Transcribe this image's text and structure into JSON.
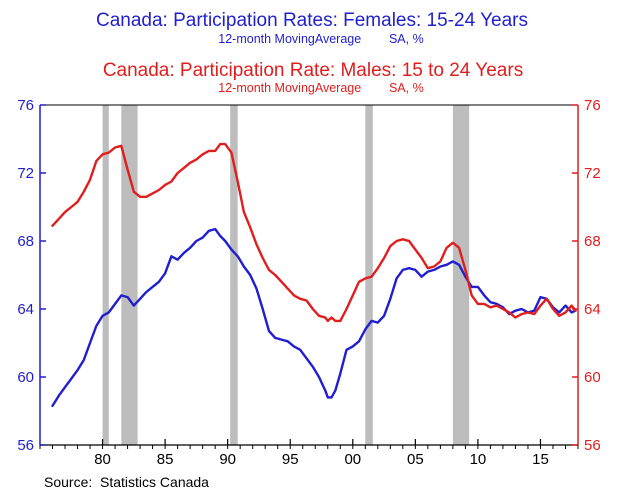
{
  "chart_data": {
    "type": "line",
    "title_female": "Canada: Participation Rates: Females: 15-24 Years",
    "subtitle_female": "12-month MovingAverage        SA, %",
    "title_male": "Canada: Participation Rate: Males: 15 to 24 Years",
    "subtitle_male": "12-month MovingAverage        SA, %",
    "source": "Source:  Statistics Canada",
    "ylim": [
      56,
      76
    ],
    "xlim": [
      1975,
      2018
    ],
    "left_ticks": [
      "76",
      "72",
      "68",
      "64",
      "60",
      "56"
    ],
    "right_ticks": [
      "76",
      "72",
      "68",
      "64",
      "60",
      "56"
    ],
    "x_ticks": [
      {
        "year": 1980,
        "label": "80"
      },
      {
        "year": 1985,
        "label": "85"
      },
      {
        "year": 1990,
        "label": "90"
      },
      {
        "year": 1995,
        "label": "95"
      },
      {
        "year": 2000,
        "label": "00"
      },
      {
        "year": 2005,
        "label": "05"
      },
      {
        "year": 2010,
        "label": "10"
      },
      {
        "year": 2015,
        "label": "15"
      }
    ],
    "recessions": [
      [
        1980.0,
        1980.5
      ],
      [
        1981.5,
        1982.8
      ],
      [
        1990.2,
        1990.8
      ],
      [
        2001.0,
        2001.6
      ],
      [
        2008.0,
        2009.3
      ]
    ],
    "colors": {
      "female": "#1f1fd0",
      "male": "#e01e1e",
      "recession": "#bdbdbd",
      "left_axis": "#1f1fd0",
      "right_axis": "#e01e1e"
    },
    "series": [
      {
        "name": "Females: 15-24 Years",
        "axis": "left",
        "x": [
          1976.0,
          1976.5,
          1977.0,
          1977.5,
          1978.0,
          1978.5,
          1979.0,
          1979.5,
          1980.0,
          1980.5,
          1981.0,
          1981.5,
          1982.0,
          1982.5,
          1983.0,
          1983.5,
          1984.0,
          1984.5,
          1985.0,
          1985.5,
          1986.0,
          1986.5,
          1987.0,
          1987.5,
          1988.0,
          1988.5,
          1989.0,
          1989.4,
          1989.8,
          1990.3,
          1990.8,
          1991.3,
          1991.8,
          1992.3,
          1992.8,
          1993.3,
          1993.8,
          1994.3,
          1994.8,
          1995.3,
          1995.8,
          1996.3,
          1996.8,
          1997.3,
          1997.8,
          1998.0,
          1998.3,
          1998.6,
          1999.0,
          1999.5,
          2000.0,
          2000.5,
          2001.0,
          2001.5,
          2002.0,
          2002.5,
          2003.0,
          2003.5,
          2004.0,
          2004.5,
          2005.0,
          2005.5,
          2006.0,
          2006.5,
          2007.0,
          2007.5,
          2008.0,
          2008.5,
          2009.0,
          2009.5,
          2010.0,
          2010.5,
          2011.0,
          2011.5,
          2012.0,
          2012.5,
          2013.0,
          2013.5,
          2014.0,
          2014.5,
          2015.0,
          2015.5,
          2016.0,
          2016.5,
          2017.0,
          2017.5,
          2017.8
        ],
        "values": [
          58.3,
          58.9,
          59.4,
          59.9,
          60.4,
          61.0,
          62.0,
          63.0,
          63.6,
          63.8,
          64.3,
          64.8,
          64.7,
          64.2,
          64.6,
          65.0,
          65.3,
          65.6,
          66.1,
          67.1,
          66.9,
          67.3,
          67.6,
          68.0,
          68.2,
          68.6,
          68.7,
          68.3,
          68.0,
          67.5,
          67.1,
          66.5,
          66.0,
          65.2,
          64.0,
          62.7,
          62.3,
          62.2,
          62.1,
          61.8,
          61.6,
          61.1,
          60.6,
          60.0,
          59.2,
          58.8,
          58.8,
          59.2,
          60.2,
          61.6,
          61.8,
          62.1,
          62.8,
          63.3,
          63.2,
          63.6,
          64.6,
          65.8,
          66.3,
          66.4,
          66.3,
          65.9,
          66.2,
          66.3,
          66.5,
          66.6,
          66.8,
          66.6,
          65.9,
          65.3,
          65.3,
          64.8,
          64.4,
          64.3,
          64.1,
          63.7,
          63.9,
          64.0,
          63.8,
          63.9,
          64.7,
          64.6,
          64.1,
          63.8,
          64.2,
          63.8,
          63.9
        ]
      },
      {
        "name": "Males: 15 to 24 Years",
        "axis": "right",
        "x": [
          1976.0,
          1976.5,
          1977.0,
          1977.5,
          1978.0,
          1978.5,
          1979.0,
          1979.5,
          1980.0,
          1980.5,
          1981.0,
          1981.5,
          1982.0,
          1982.5,
          1983.0,
          1983.5,
          1984.0,
          1984.5,
          1985.0,
          1985.5,
          1986.0,
          1986.5,
          1987.0,
          1987.5,
          1988.0,
          1988.5,
          1989.0,
          1989.4,
          1989.8,
          1990.3,
          1990.8,
          1991.3,
          1991.8,
          1992.3,
          1992.8,
          1993.3,
          1993.8,
          1994.3,
          1994.8,
          1995.3,
          1995.8,
          1996.3,
          1996.8,
          1997.3,
          1997.8,
          1998.0,
          1998.3,
          1998.6,
          1999.0,
          1999.5,
          2000.0,
          2000.5,
          2001.0,
          2001.5,
          2002.0,
          2002.5,
          2003.0,
          2003.5,
          2004.0,
          2004.5,
          2005.0,
          2005.5,
          2006.0,
          2006.5,
          2007.0,
          2007.5,
          2008.0,
          2008.5,
          2009.0,
          2009.5,
          2010.0,
          2010.5,
          2011.0,
          2011.5,
          2012.0,
          2012.5,
          2013.0,
          2013.5,
          2014.0,
          2014.5,
          2015.0,
          2015.5,
          2016.0,
          2016.5,
          2017.0,
          2017.5,
          2017.8
        ],
        "values": [
          68.9,
          69.3,
          69.7,
          70.0,
          70.3,
          70.9,
          71.6,
          72.7,
          73.1,
          73.2,
          73.5,
          73.6,
          72.2,
          70.9,
          70.6,
          70.6,
          70.8,
          71.0,
          71.3,
          71.5,
          72.0,
          72.3,
          72.6,
          72.8,
          73.1,
          73.3,
          73.3,
          73.7,
          73.7,
          73.2,
          71.5,
          69.7,
          68.8,
          67.8,
          67.0,
          66.3,
          66.0,
          65.6,
          65.2,
          64.8,
          64.6,
          64.5,
          64.0,
          63.6,
          63.5,
          63.3,
          63.5,
          63.3,
          63.3,
          64.0,
          64.8,
          65.6,
          65.8,
          65.9,
          66.4,
          67.0,
          67.7,
          68.0,
          68.1,
          68.0,
          67.5,
          67.0,
          66.4,
          66.5,
          66.8,
          67.6,
          67.9,
          67.6,
          66.3,
          64.8,
          64.3,
          64.3,
          64.1,
          64.2,
          64.0,
          63.8,
          63.5,
          63.7,
          63.8,
          63.7,
          64.2,
          64.6,
          64.0,
          63.6,
          63.8,
          64.2,
          63.9
        ]
      }
    ]
  }
}
